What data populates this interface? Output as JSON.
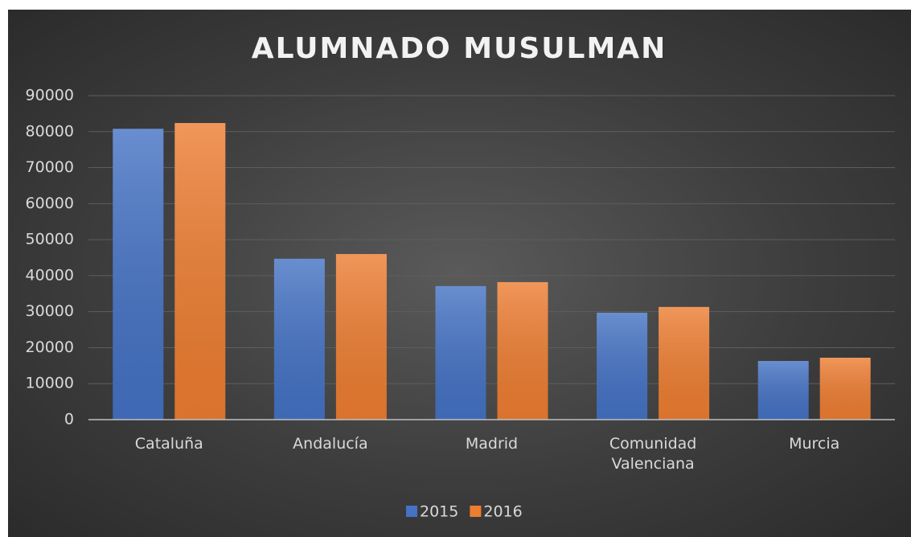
{
  "chart_data": {
    "type": "bar",
    "title": "ALUMNADO MUSULMAN",
    "categories": [
      "Cataluña",
      "Andalucía",
      "Madrid",
      "Comunidad Valenciana",
      "Murcia"
    ],
    "series": [
      {
        "name": "2015",
        "color": "#4472c4",
        "values": [
          80800,
          44700,
          37100,
          29700,
          16300
        ]
      },
      {
        "name": "2016",
        "color": "#ed7d31",
        "values": [
          82400,
          46000,
          38200,
          31300,
          17200
        ]
      }
    ],
    "ylim": [
      0,
      90000
    ],
    "yticks": [
      0,
      10000,
      20000,
      30000,
      40000,
      50000,
      60000,
      70000,
      80000,
      90000
    ],
    "grid": true,
    "legend": "bottom"
  }
}
